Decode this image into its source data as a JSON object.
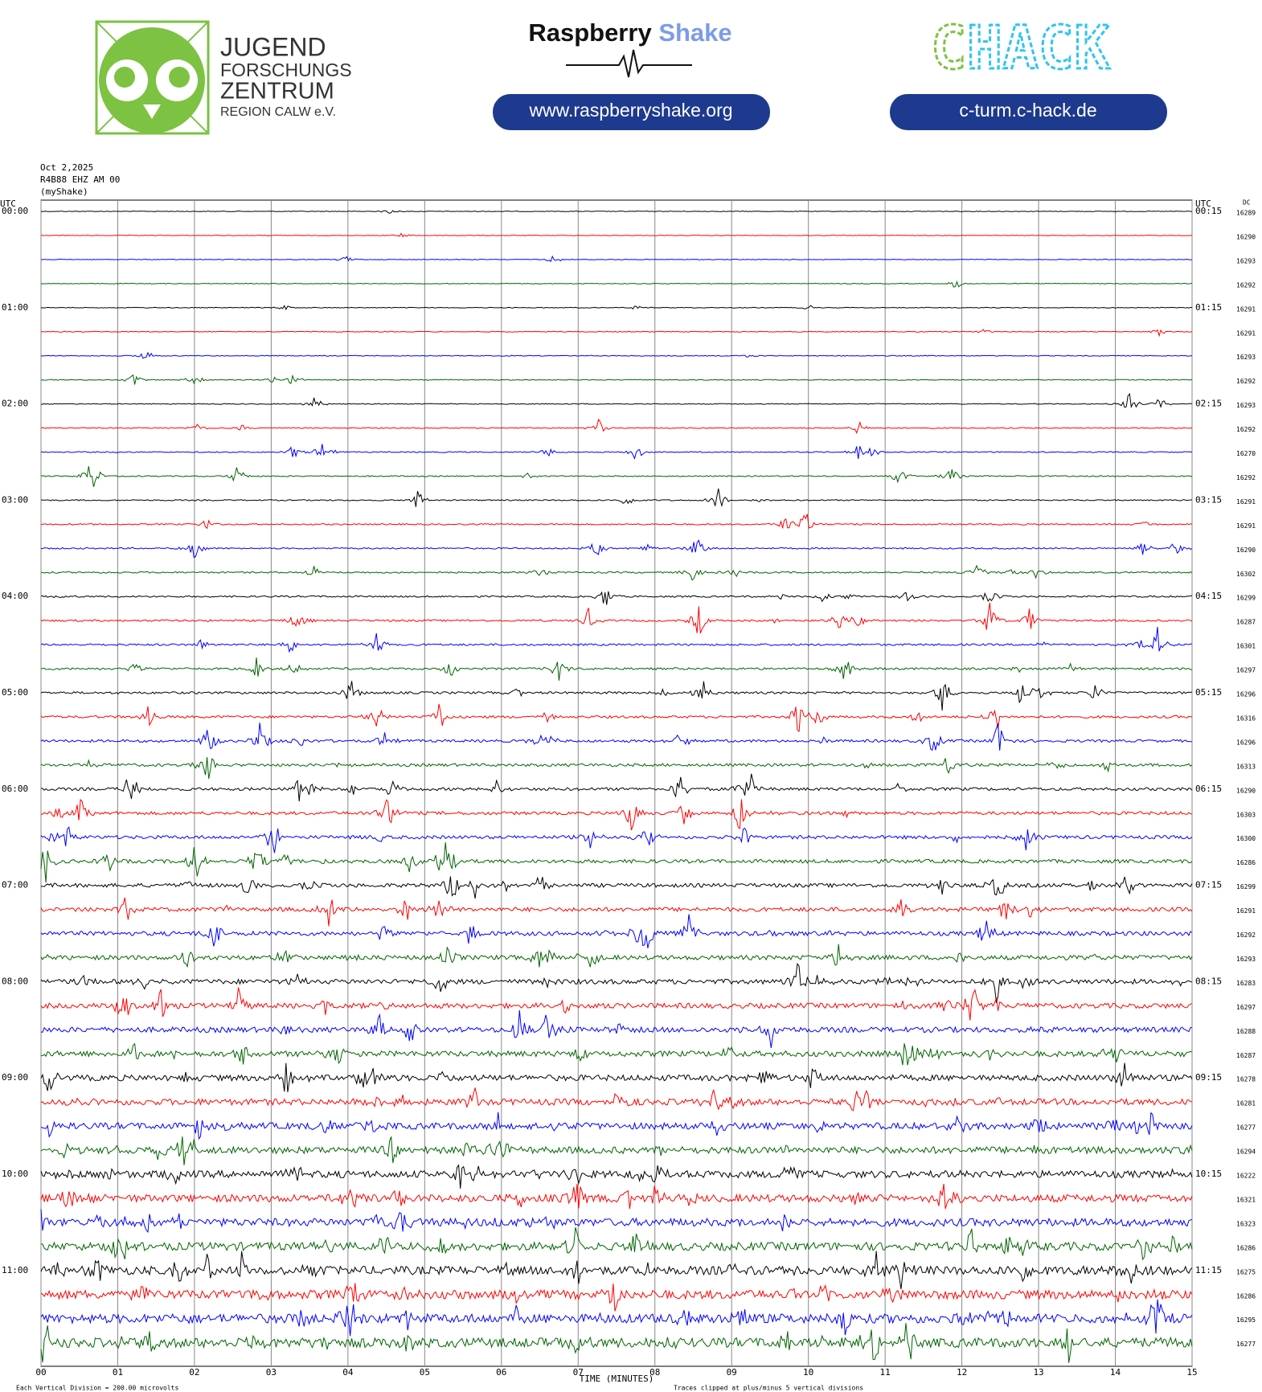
{
  "header": {
    "jfz_line1": "JUGEND",
    "jfz_line2": "FORSCHUNGS",
    "jfz_line3": "ZENTRUM",
    "jfz_line4": "REGION CALW e.V.",
    "rs_word1": "Raspberry",
    "rs_word2": "Shake",
    "rs_link": "www.raspberryshake.org",
    "chack_c": "C",
    "chack_hack": "HACK",
    "chack_link": "c-turm.c-hack.de"
  },
  "plot": {
    "date": "Oct 2,2025",
    "station": "R4B88 EHZ AM 00",
    "source": "(myShake)",
    "left_axis_label": "UTC",
    "right_axis_label": "UTC",
    "dc_label": "DC",
    "row_start_labels": [
      "00:00",
      "01:00",
      "02:00",
      "03:00",
      "04:00",
      "05:00",
      "06:00",
      "07:00",
      "08:00",
      "09:00",
      "10:00",
      "11:00"
    ],
    "row_end_labels": [
      "00:15",
      "01:15",
      "02:15",
      "03:15",
      "04:15",
      "05:15",
      "06:15",
      "07:15",
      "08:15",
      "09:15",
      "10:15",
      "11:15"
    ],
    "dc_values": [
      16289,
      16290,
      16293,
      16292,
      16291,
      16291,
      16293,
      16292,
      16293,
      16292,
      16270,
      16292,
      16291,
      16291,
      16290,
      16302,
      16299,
      16287,
      16301,
      16297,
      16296,
      16316,
      16296,
      16313,
      16290,
      16303,
      16300,
      16286,
      16299,
      16291,
      16292,
      16293,
      16283,
      16297,
      16288,
      16287,
      16278,
      16281,
      16277,
      16294,
      16222,
      16321,
      16323,
      16286,
      16275,
      16286,
      16295,
      16277
    ],
    "trace_colors": [
      "#000000",
      "#ff0000",
      "#0000ff",
      "#006400"
    ],
    "x_ticks": [
      "00",
      "01",
      "02",
      "03",
      "04",
      "05",
      "06",
      "07",
      "08",
      "09",
      "10",
      "11",
      "12",
      "13",
      "14",
      "15"
    ],
    "x_axis_label": "TIME (MINUTES)",
    "scale_note": "Each Vertical Division =  200.00 microvolts",
    "clip_note": "Traces clipped at plus/minus 5 vertical divisions"
  }
}
